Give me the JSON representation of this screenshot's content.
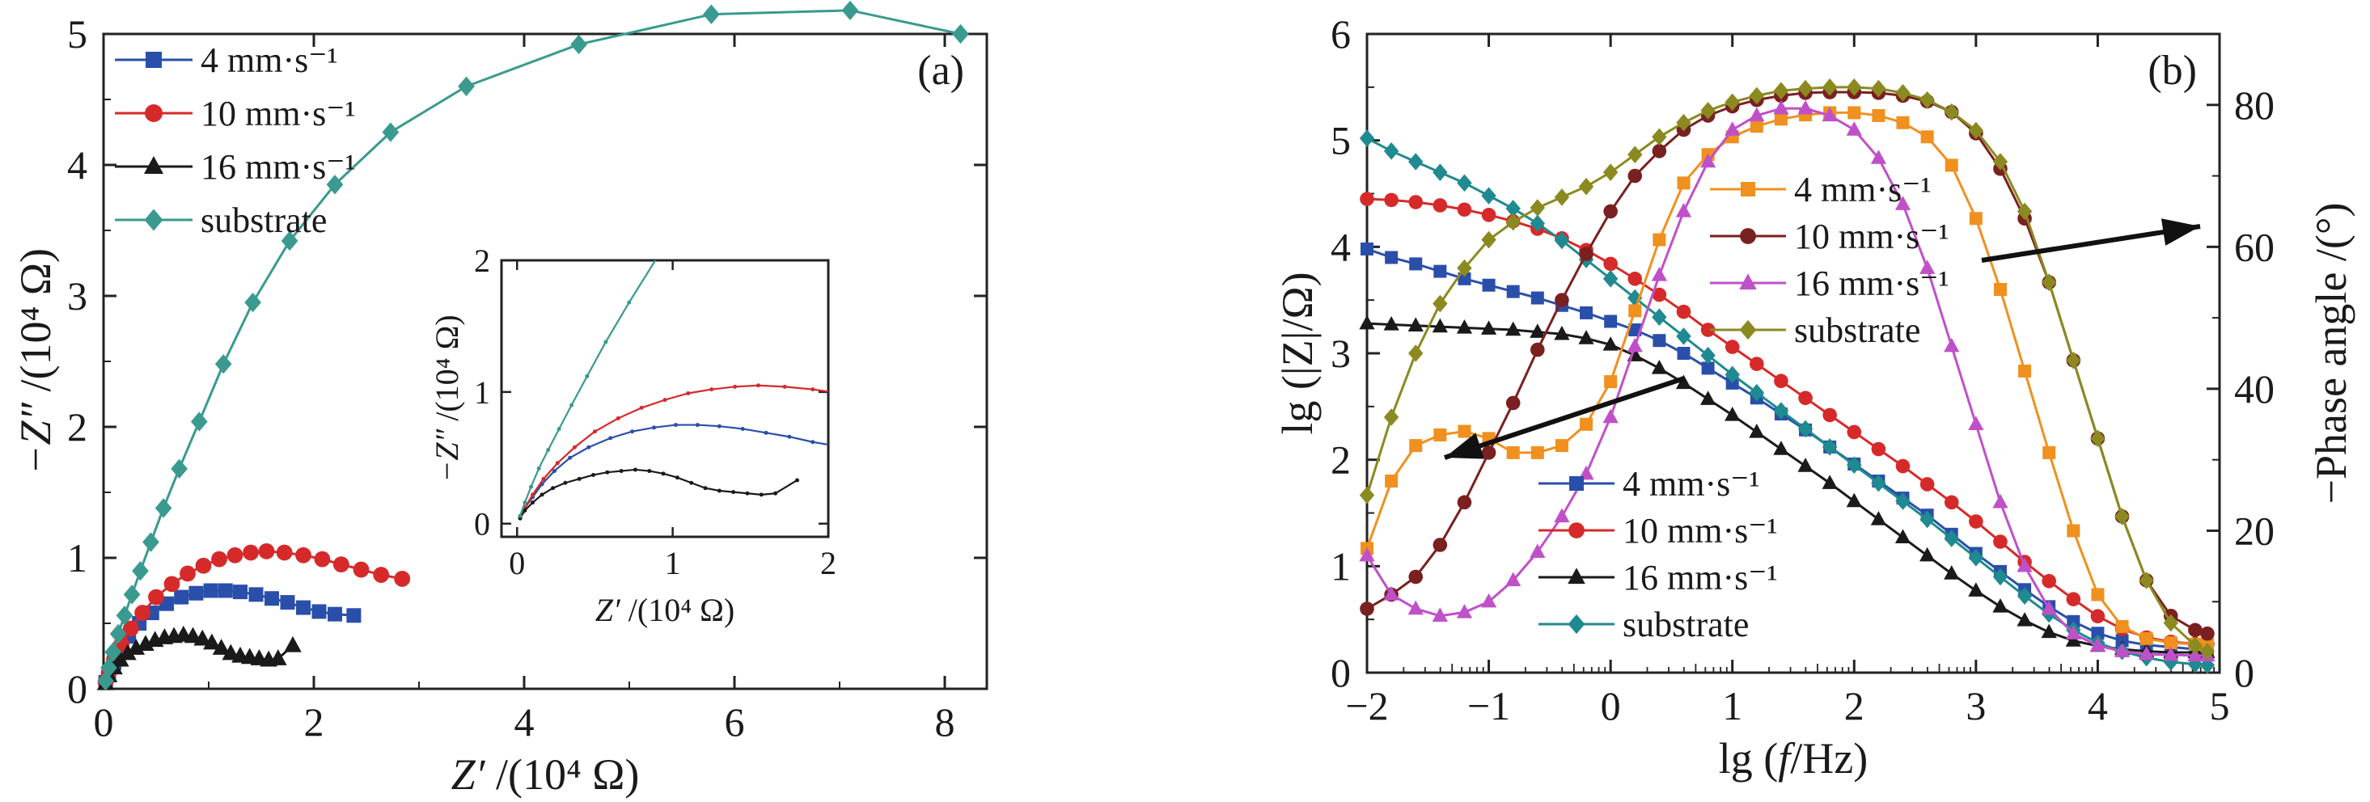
{
  "chart_data": [
    {
      "type": "scatter",
      "panel_label": "(a)",
      "xlabel": {
        "sym": "Z′",
        "rest": " /(10⁴ Ω)"
      },
      "ylabel": {
        "sym": "−Z″",
        "rest": " /(10⁴ Ω)"
      },
      "xlim": [
        0,
        8.4
      ],
      "ylim": [
        0,
        5
      ],
      "xticks": [
        "0",
        "2",
        "4",
        "6",
        "8"
      ],
      "yticks": [
        "0",
        "1",
        "2",
        "3",
        "4",
        "5"
      ],
      "legend_position": "top-left",
      "series": [
        {
          "name": "4 mm·s⁻¹",
          "color": "#2a4faa",
          "marker": "square",
          "x": [
            0.02,
            0.05,
            0.1,
            0.16,
            0.24,
            0.34,
            0.46,
            0.6,
            0.74,
            0.88,
            1.02,
            1.16,
            1.3,
            1.45,
            1.6,
            1.75,
            1.9,
            2.05,
            2.2,
            2.38
          ],
          "y": [
            0.05,
            0.12,
            0.2,
            0.3,
            0.4,
            0.5,
            0.58,
            0.65,
            0.7,
            0.73,
            0.75,
            0.75,
            0.74,
            0.72,
            0.69,
            0.66,
            0.62,
            0.59,
            0.57,
            0.56
          ]
        },
        {
          "name": "10 mm·s⁻¹",
          "color": "#d62a2a",
          "marker": "circle",
          "x": [
            0.02,
            0.05,
            0.1,
            0.17,
            0.26,
            0.37,
            0.5,
            0.65,
            0.8,
            0.95,
            1.1,
            1.25,
            1.4,
            1.55,
            1.72,
            1.9,
            2.08,
            2.26,
            2.45,
            2.64,
            2.84
          ],
          "y": [
            0.05,
            0.12,
            0.22,
            0.34,
            0.46,
            0.58,
            0.7,
            0.8,
            0.88,
            0.94,
            0.99,
            1.02,
            1.04,
            1.05,
            1.04,
            1.02,
            0.99,
            0.95,
            0.91,
            0.87,
            0.84
          ]
        },
        {
          "name": "16 mm·s⁻¹",
          "color": "#1a1a1a",
          "marker": "triangle",
          "x": [
            0.02,
            0.05,
            0.1,
            0.16,
            0.23,
            0.31,
            0.4,
            0.49,
            0.58,
            0.67,
            0.76,
            0.85,
            0.94,
            1.03,
            1.12,
            1.21,
            1.3,
            1.39,
            1.48,
            1.57,
            1.66,
            1.8
          ],
          "y": [
            0.04,
            0.1,
            0.16,
            0.22,
            0.27,
            0.31,
            0.34,
            0.37,
            0.39,
            0.4,
            0.41,
            0.4,
            0.38,
            0.35,
            0.31,
            0.27,
            0.25,
            0.24,
            0.23,
            0.22,
            0.23,
            0.33
          ]
        },
        {
          "name": "substrate",
          "color": "#3a9a8f",
          "marker": "diamond",
          "x": [
            0.02,
            0.05,
            0.09,
            0.14,
            0.2,
            0.27,
            0.35,
            0.45,
            0.57,
            0.72,
            0.91,
            1.14,
            1.42,
            1.77,
            2.2,
            2.73,
            3.45,
            4.52,
            5.78,
            7.1,
            8.15
          ],
          "y": [
            0.06,
            0.16,
            0.28,
            0.42,
            0.56,
            0.72,
            0.9,
            1.12,
            1.38,
            1.68,
            2.04,
            2.48,
            2.95,
            3.42,
            3.85,
            4.25,
            4.6,
            4.92,
            5.15,
            5.18,
            5.0
          ]
        }
      ],
      "inset": {
        "xlabel": {
          "sym": "Z′",
          "rest": " /(10⁴ Ω)"
        },
        "ylabel": {
          "sym": "−Z″",
          "rest": " /(10⁴ Ω)"
        },
        "xlim": [
          -0.1,
          2
        ],
        "ylim": [
          -0.1,
          2
        ],
        "xticks": [
          "0",
          "1",
          "2"
        ],
        "yticks": [
          "0",
          "1",
          "2"
        ]
      }
    },
    {
      "type": "line",
      "panel_label": "(b)",
      "xlabel": {
        "pre": "lg (",
        "sym": "f",
        "rest": "/Hz)"
      },
      "ylabel_left": "lg (|Z|/Ω)",
      "ylabel_right": "−Phase angle /(°)",
      "xlim": [
        -2,
        5
      ],
      "ylim_left": [
        0,
        6
      ],
      "ylim_right": [
        0,
        90
      ],
      "xticks": [
        "−2",
        "−1",
        "0",
        "1",
        "2",
        "3",
        "4",
        "5"
      ],
      "yticks_left": [
        "0",
        "1",
        "2",
        "3",
        "4",
        "5",
        "6"
      ],
      "yticks_right": [
        "0",
        "20",
        "40",
        "60",
        "80"
      ],
      "x": [
        -2,
        -1.8,
        -1.6,
        -1.4,
        -1.2,
        -1,
        -0.8,
        -0.6,
        -0.4,
        -0.2,
        0,
        0.2,
        0.4,
        0.6,
        0.8,
        1,
        1.2,
        1.4,
        1.6,
        1.8,
        2,
        2.2,
        2.4,
        2.6,
        2.8,
        3,
        3.2,
        3.4,
        3.6,
        3.8,
        4,
        4.2,
        4.4,
        4.6,
        4.8,
        4.9
      ],
      "series_magnitude": [
        {
          "name": "4 mm·s⁻¹",
          "color": "#2a4faa",
          "marker": "square",
          "y": [
            3.98,
            3.9,
            3.84,
            3.77,
            3.7,
            3.64,
            3.58,
            3.52,
            3.45,
            3.38,
            3.3,
            3.22,
            3.12,
            3.0,
            2.86,
            2.72,
            2.58,
            2.43,
            2.28,
            2.12,
            1.96,
            1.8,
            1.64,
            1.48,
            1.3,
            1.12,
            0.95,
            0.78,
            0.62,
            0.48,
            0.37,
            0.3,
            0.26,
            0.24,
            0.22,
            0.22
          ]
        },
        {
          "name": "10 mm·s⁻¹",
          "color": "#d62a2a",
          "marker": "circle",
          "y": [
            4.45,
            4.44,
            4.42,
            4.39,
            4.35,
            4.3,
            4.24,
            4.17,
            4.08,
            3.97,
            3.84,
            3.7,
            3.55,
            3.39,
            3.22,
            3.06,
            2.9,
            2.74,
            2.58,
            2.42,
            2.26,
            2.1,
            1.94,
            1.77,
            1.6,
            1.42,
            1.23,
            1.04,
            0.86,
            0.69,
            0.53,
            0.41,
            0.33,
            0.29,
            0.27,
            0.27
          ]
        },
        {
          "name": "16 mm·s⁻¹",
          "color": "#1a1a1a",
          "marker": "triangle",
          "y": [
            3.28,
            3.27,
            3.26,
            3.25,
            3.24,
            3.23,
            3.22,
            3.2,
            3.18,
            3.14,
            3.08,
            2.98,
            2.86,
            2.72,
            2.57,
            2.42,
            2.26,
            2.1,
            1.94,
            1.78,
            1.61,
            1.44,
            1.27,
            1.1,
            0.93,
            0.77,
            0.62,
            0.49,
            0.38,
            0.3,
            0.25,
            0.22,
            0.2,
            0.19,
            0.19,
            0.19
          ]
        },
        {
          "name": "substrate",
          "color": "#1f8a8f",
          "marker": "diamond",
          "y": [
            5.02,
            4.9,
            4.8,
            4.7,
            4.6,
            4.48,
            4.36,
            4.22,
            4.06,
            3.88,
            3.7,
            3.52,
            3.34,
            3.16,
            2.98,
            2.8,
            2.63,
            2.46,
            2.29,
            2.12,
            1.95,
            1.78,
            1.61,
            1.44,
            1.26,
            1.08,
            0.9,
            0.72,
            0.55,
            0.4,
            0.28,
            0.2,
            0.14,
            0.1,
            0.08,
            0.07
          ]
        }
      ],
      "series_phase": [
        {
          "name": "4 mm·s⁻¹",
          "color": "#f0901e",
          "marker": "square",
          "y": [
            17.5,
            27,
            32,
            33.5,
            34,
            33,
            31,
            31,
            32,
            35,
            41,
            51,
            61,
            69,
            73,
            75.5,
            77,
            78,
            78.6,
            78.9,
            78.9,
            78.5,
            77.5,
            75.5,
            71.5,
            64,
            54,
            42.5,
            31,
            20,
            11,
            6.5,
            4.8,
            4.2,
            4,
            4
          ]
        },
        {
          "name": "10 mm·s⁻¹",
          "color": "#7a2020",
          "marker": "circle",
          "y": [
            9,
            11,
            13.5,
            18,
            24,
            31,
            38,
            45.5,
            52.5,
            59,
            65,
            70,
            73.5,
            76.5,
            78.5,
            79.8,
            80.7,
            81.3,
            81.7,
            81.8,
            81.8,
            81.7,
            81.3,
            80.5,
            79,
            76,
            71,
            64,
            55,
            44,
            33,
            22,
            13,
            8,
            6,
            5.5
          ]
        },
        {
          "name": "16 mm·s⁻¹",
          "color": "#c050c8",
          "marker": "triangle",
          "y": [
            16.5,
            11,
            9,
            8,
            8.5,
            10,
            13,
            17,
            22,
            28,
            36,
            46,
            56,
            65,
            72,
            76.5,
            78.5,
            79.5,
            79.5,
            78.5,
            76.5,
            72.5,
            66,
            57,
            46,
            35,
            24,
            15,
            9,
            5.5,
            3.8,
            3,
            2.6,
            2.5,
            2.4,
            2.4
          ]
        },
        {
          "name": "substrate",
          "color": "#8a8a20",
          "marker": "diamond",
          "y": [
            25,
            36,
            45,
            52,
            57,
            61,
            63.5,
            65.5,
            67,
            68.5,
            70.5,
            73,
            75.5,
            77.5,
            79.2,
            80.4,
            81.3,
            82,
            82.3,
            82.5,
            82.5,
            82.3,
            81.7,
            80.7,
            79,
            76.4,
            72,
            65,
            55,
            44,
            33,
            22,
            13,
            7,
            3.8,
            3
          ]
        }
      ]
    }
  ]
}
